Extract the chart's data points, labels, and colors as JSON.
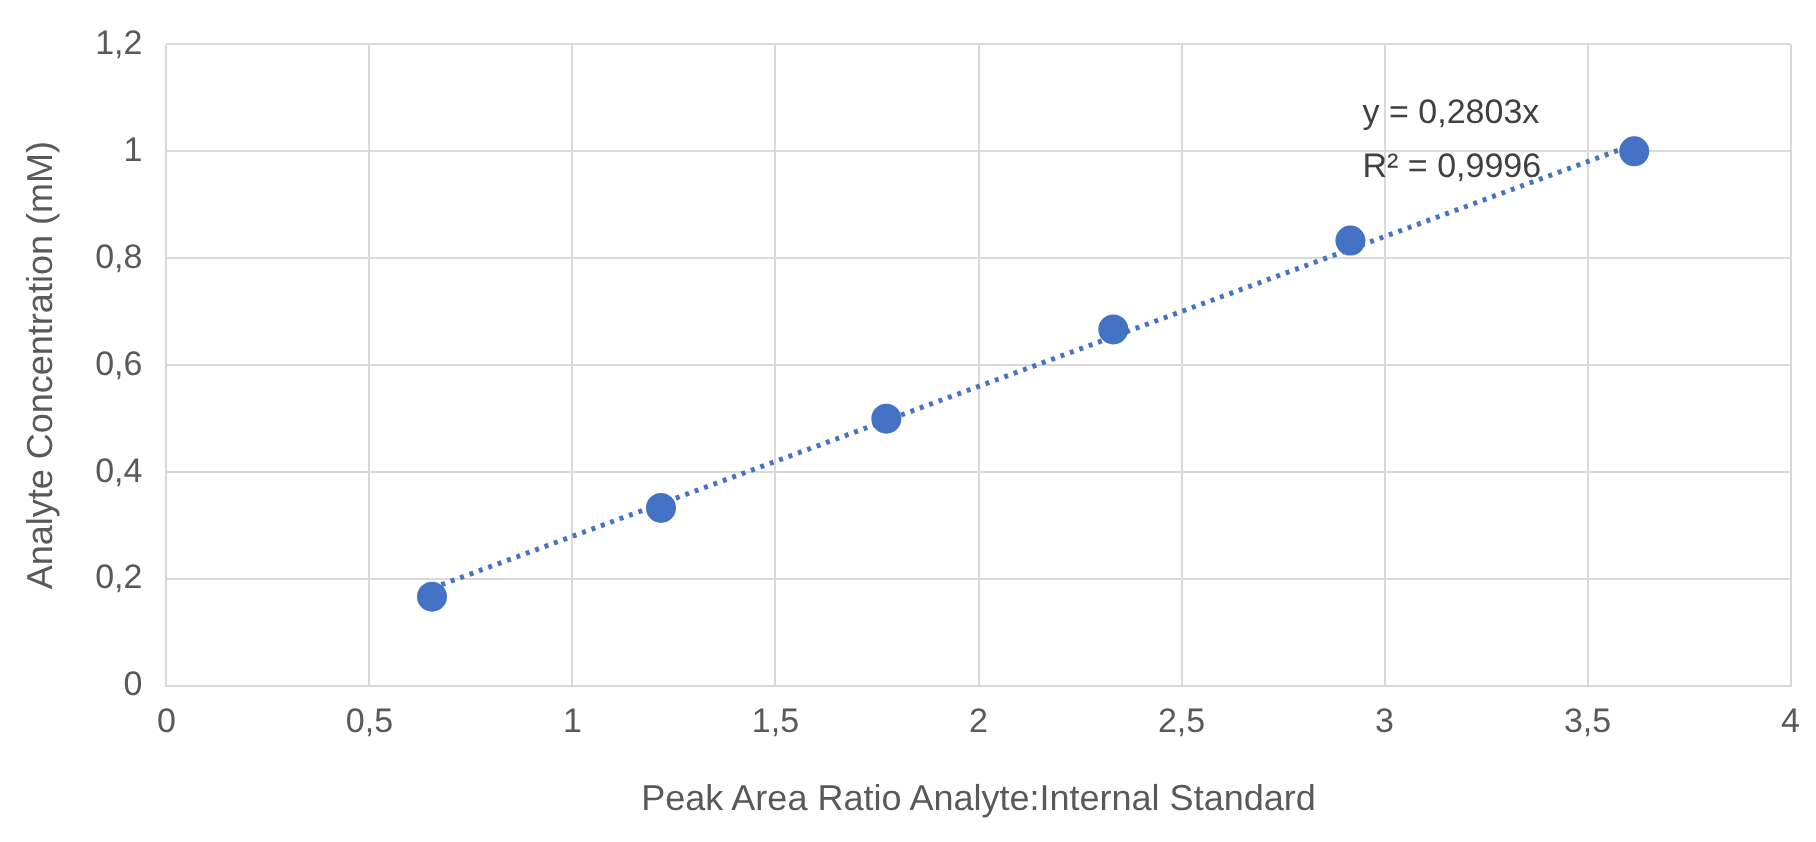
{
  "chart_data": {
    "type": "scatter",
    "xlabel": "Peak Area Ratio Analyte:Internal Standard",
    "ylabel": "Analyte Concentration (mM)",
    "series": [
      {
        "type": "scatter",
        "color": "#4472c4",
        "x": [
          0.654,
          1.218,
          1.773,
          2.332,
          2.916,
          3.615
        ],
        "values": [
          0.167,
          0.333,
          0.5,
          0.667,
          0.833,
          1.0
        ]
      },
      {
        "type": "line",
        "color": "#4472c4",
        "line_style": "dotted",
        "marker": "none",
        "x": [
          0.654,
          3.615
        ],
        "values": [
          0.183,
          1.013
        ]
      }
    ],
    "annotations": [
      "y = 0,2803x",
      "R² = 0,9996"
    ],
    "xlim": [
      0,
      4
    ],
    "xticks": [
      0,
      {
        "value": 0.5,
        "label": "0,5"
      },
      1,
      {
        "value": 1.5,
        "label": "1,5"
      },
      2,
      {
        "value": 2.5,
        "label": "2,5"
      },
      3,
      {
        "value": 3.5,
        "label": "3,5"
      },
      4
    ],
    "ylim": [
      0,
      1.2
    ],
    "yticks": [
      0,
      {
        "value": 0.2,
        "label": "0,2"
      },
      {
        "value": 0.4,
        "label": "0,4"
      },
      {
        "value": 0.6,
        "label": "0,6"
      },
      {
        "value": 0.8,
        "label": "0,8"
      },
      1,
      {
        "value": 1.2,
        "label": "1,2"
      }
    ],
    "grid": true,
    "marker": "circle",
    "legend": false
  }
}
